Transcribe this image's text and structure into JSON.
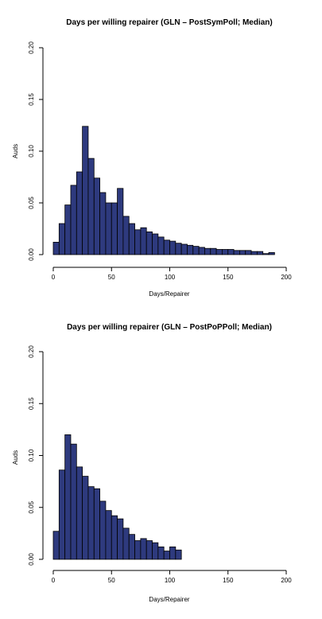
{
  "colors": {
    "bar_fill": "#2e3a7e",
    "bar_stroke": "#000000",
    "axis": "#000000",
    "background": "#ffffff"
  },
  "chart_data": [
    {
      "type": "bar",
      "title": "Days per willing repairer (GLN – PostSymPoll; Median)",
      "xlabel": "Days/Repairer",
      "ylabel": "Auds",
      "xlim": [
        0,
        200
      ],
      "ylim": [
        0,
        0.2
      ],
      "xticks": [
        "0",
        "50",
        "100",
        "150",
        "200"
      ],
      "yticks": [
        "0.00",
        "0.05",
        "0.10",
        "0.15",
        "0.20"
      ],
      "bin_width": 5,
      "bin_start": 0,
      "values": [
        0.012,
        0.03,
        0.048,
        0.067,
        0.08,
        0.124,
        0.093,
        0.074,
        0.06,
        0.05,
        0.05,
        0.064,
        0.037,
        0.03,
        0.024,
        0.026,
        0.022,
        0.02,
        0.017,
        0.014,
        0.013,
        0.011,
        0.01,
        0.009,
        0.008,
        0.007,
        0.006,
        0.006,
        0.005,
        0.005,
        0.005,
        0.004,
        0.004,
        0.004,
        0.003,
        0.003,
        0.001,
        0.002
      ],
      "grid": false
    },
    {
      "type": "bar",
      "title": "Days per willing repairer (GLN – PostPoPPoll; Median)",
      "xlabel": "Days/Repairer",
      "ylabel": "Auds",
      "xlim": [
        0,
        200
      ],
      "ylim": [
        0,
        0.2
      ],
      "xticks": [
        "0",
        "50",
        "100",
        "150",
        "200"
      ],
      "yticks": [
        "0.00",
        "0.05",
        "0.10",
        "0.15",
        "0.20"
      ],
      "bin_width": 5,
      "bin_start": 0,
      "values": [
        0.027,
        0.086,
        0.12,
        0.111,
        0.089,
        0.08,
        0.07,
        0.068,
        0.056,
        0.047,
        0.042,
        0.039,
        0.03,
        0.024,
        0.018,
        0.02,
        0.018,
        0.016,
        0.012,
        0.008,
        0.012,
        0.009
      ],
      "grid": false
    }
  ]
}
